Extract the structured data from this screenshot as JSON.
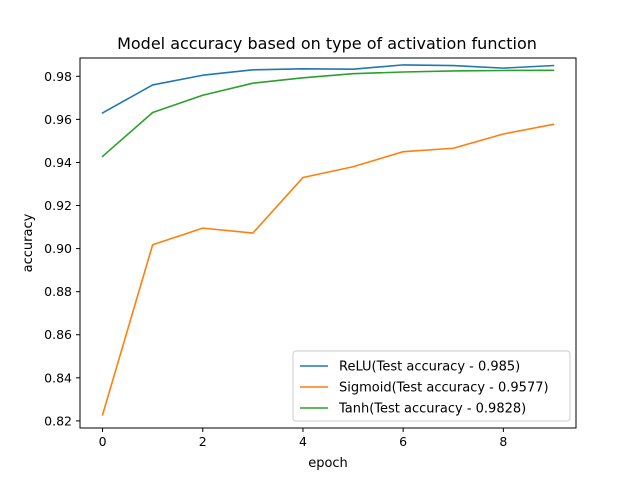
{
  "chart_data": {
    "type": "line",
    "title": "Model accuracy based on type of activation function",
    "xlabel": "epoch",
    "ylabel": "accuracy",
    "x": [
      0,
      1,
      2,
      3,
      4,
      5,
      6,
      7,
      8,
      9
    ],
    "xlim": [
      -0.45,
      9.45
    ],
    "ylim": [
      0.8167,
      0.9885
    ],
    "xticks": [
      0,
      2,
      4,
      6,
      8
    ],
    "yticks": [
      0.82,
      0.84,
      0.86,
      0.88,
      0.9,
      0.92,
      0.94,
      0.96,
      0.98
    ],
    "grid": false,
    "legend_position": "lower-right",
    "series": [
      {
        "name": "ReLU(Test accuracy - 0.985)",
        "color": "#1f77b4",
        "values": [
          0.963,
          0.976,
          0.9805,
          0.983,
          0.9835,
          0.9833,
          0.9853,
          0.985,
          0.9838,
          0.985
        ]
      },
      {
        "name": "Sigmoid(Test accuracy - 0.9577)",
        "color": "#ff7f0e",
        "values": [
          0.8228,
          0.9018,
          0.9095,
          0.9072,
          0.933,
          0.938,
          0.945,
          0.9466,
          0.9532,
          0.9577
        ]
      },
      {
        "name": "Tanh(Test accuracy - 0.9828)",
        "color": "#2ca02c",
        "values": [
          0.9428,
          0.9632,
          0.9712,
          0.9768,
          0.9793,
          0.9812,
          0.982,
          0.9825,
          0.9827,
          0.9828
        ]
      }
    ]
  }
}
